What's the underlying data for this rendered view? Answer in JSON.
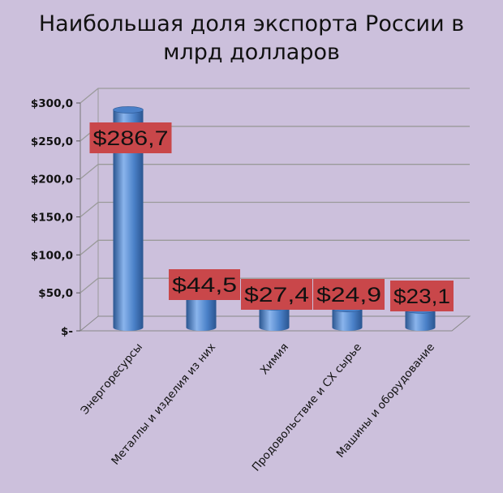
{
  "chart_data": {
    "type": "bar",
    "title_lines": [
      "Наибольшая доля экспорта России в",
      "млрд долларов"
    ],
    "categories": [
      "Энергоресурсы",
      "Металлы и изделия из них",
      "Химия",
      "Продовольствие и СХ сырье",
      "Машины и оборудование"
    ],
    "values": [
      286.7,
      44.5,
      27.4,
      24.9,
      23.1
    ],
    "data_labels": [
      "$286,7",
      "$44,5",
      "$27,4",
      "$24,9",
      "$23,1"
    ],
    "y_ticks": [
      {
        "value": 0,
        "label": "$-"
      },
      {
        "value": 50,
        "label": "$50,0"
      },
      {
        "value": 100,
        "label": "$100,0"
      },
      {
        "value": 150,
        "label": "$150,0"
      },
      {
        "value": 200,
        "label": "$200,0"
      },
      {
        "value": 250,
        "label": "$250,0"
      },
      {
        "value": 300,
        "label": "$300,0"
      }
    ],
    "ylim": [
      0,
      300
    ],
    "grid": true,
    "colors": {
      "background": "#ccc0dc",
      "bar": "#4a80c8",
      "bar_dark": "#2a5590",
      "bar_light": "#8ab4ec",
      "label_box": "#c9474a",
      "grid": "#9a9a9a"
    }
  }
}
